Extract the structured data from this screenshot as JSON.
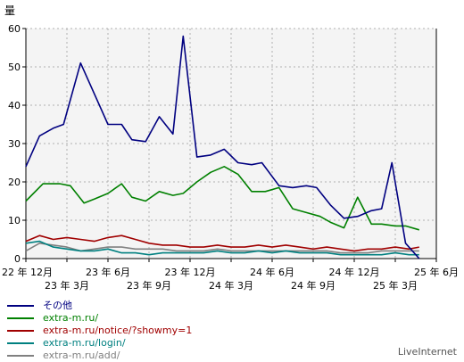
{
  "chart_data": {
    "type": "line",
    "ylabel": "量",
    "ylim": [
      0,
      60
    ],
    "yticks": [
      0,
      10,
      20,
      30,
      40,
      50,
      60
    ],
    "grid": true,
    "x_labels_row1": [
      {
        "text": "22 年 12月",
        "i": 0
      },
      {
        "text": "23 年 6月",
        "i": 24
      },
      {
        "text": "23 年 12月",
        "i": 48
      },
      {
        "text": "24 年 6月",
        "i": 72
      },
      {
        "text": "24 年 12月",
        "i": 96
      },
      {
        "text": "25 年 6月",
        "i": 120
      }
    ],
    "x_labels_row2": [
      {
        "text": "23 年 3月",
        "i": 12
      },
      {
        "text": "23 年 9月",
        "i": 36
      },
      {
        "text": "24 年 3月",
        "i": 60
      },
      {
        "text": "24 年 9月",
        "i": 84
      },
      {
        "text": "25 年 3月",
        "i": 108
      }
    ],
    "x_index_max": 120,
    "series": [
      {
        "name": "その他",
        "color": "#000080",
        "points": [
          [
            0,
            24
          ],
          [
            4,
            32
          ],
          [
            8,
            34
          ],
          [
            11,
            35
          ],
          [
            16,
            51
          ],
          [
            24,
            35
          ],
          [
            28,
            35
          ],
          [
            31,
            31
          ],
          [
            35,
            30.5
          ],
          [
            39,
            37
          ],
          [
            43,
            32.5
          ],
          [
            46,
            58
          ],
          [
            50,
            26.5
          ],
          [
            54,
            27
          ],
          [
            58,
            28.5
          ],
          [
            62,
            25
          ],
          [
            66,
            24.5
          ],
          [
            69,
            25
          ],
          [
            74,
            19
          ],
          [
            78,
            18.5
          ],
          [
            82,
            19
          ],
          [
            85,
            18.5
          ],
          [
            89,
            14
          ],
          [
            93,
            10.5
          ],
          [
            97,
            11
          ],
          [
            101,
            12.5
          ],
          [
            104,
            13
          ],
          [
            107,
            25
          ],
          [
            111,
            4
          ],
          [
            115,
            0
          ]
        ]
      },
      {
        "name": "extra-m.ru/",
        "color": "#008000",
        "points": [
          [
            0,
            15
          ],
          [
            5,
            19.5
          ],
          [
            10,
            19.5
          ],
          [
            13,
            19
          ],
          [
            17,
            14.5
          ],
          [
            20,
            15.5
          ],
          [
            24,
            17
          ],
          [
            28,
            19.5
          ],
          [
            31,
            16
          ],
          [
            35,
            15
          ],
          [
            39,
            17.5
          ],
          [
            43,
            16.5
          ],
          [
            46,
            17
          ],
          [
            50,
            20
          ],
          [
            54,
            22.5
          ],
          [
            58,
            24
          ],
          [
            62,
            22
          ],
          [
            66,
            17.5
          ],
          [
            70,
            17.5
          ],
          [
            74,
            18.5
          ],
          [
            78,
            13
          ],
          [
            82,
            12
          ],
          [
            86,
            11
          ],
          [
            89,
            9.5
          ],
          [
            93,
            8
          ],
          [
            97,
            16
          ],
          [
            101,
            9
          ],
          [
            104,
            9
          ],
          [
            108,
            8.5
          ],
          [
            111,
            8.5
          ],
          [
            115,
            7.5
          ]
        ]
      },
      {
        "name": "extra-m.ru/notice/?showmy=1",
        "color": "#a00000",
        "points": [
          [
            0,
            4.5
          ],
          [
            4,
            6
          ],
          [
            8,
            5
          ],
          [
            12,
            5.5
          ],
          [
            16,
            5
          ],
          [
            20,
            4.5
          ],
          [
            24,
            5.5
          ],
          [
            28,
            6
          ],
          [
            32,
            5
          ],
          [
            36,
            4
          ],
          [
            40,
            3.5
          ],
          [
            44,
            3.5
          ],
          [
            48,
            3
          ],
          [
            52,
            3
          ],
          [
            56,
            3.5
          ],
          [
            60,
            3
          ],
          [
            64,
            3
          ],
          [
            68,
            3.5
          ],
          [
            72,
            3
          ],
          [
            76,
            3.5
          ],
          [
            80,
            3
          ],
          [
            84,
            2.5
          ],
          [
            88,
            3
          ],
          [
            92,
            2.5
          ],
          [
            96,
            2
          ],
          [
            100,
            2.5
          ],
          [
            104,
            2.5
          ],
          [
            108,
            3
          ],
          [
            112,
            2.5
          ],
          [
            115,
            3
          ]
        ]
      },
      {
        "name": "extra-m.ru/login/",
        "color": "#008080",
        "points": [
          [
            0,
            4
          ],
          [
            4,
            4.5
          ],
          [
            8,
            3
          ],
          [
            12,
            2.5
          ],
          [
            16,
            2
          ],
          [
            20,
            2
          ],
          [
            24,
            2.5
          ],
          [
            28,
            1.5
          ],
          [
            32,
            1.5
          ],
          [
            36,
            1
          ],
          [
            40,
            1.5
          ],
          [
            44,
            1.5
          ],
          [
            48,
            1.5
          ],
          [
            52,
            1.5
          ],
          [
            56,
            2
          ],
          [
            60,
            1.5
          ],
          [
            64,
            1.5
          ],
          [
            68,
            2
          ],
          [
            72,
            1.5
          ],
          [
            76,
            2
          ],
          [
            80,
            1.5
          ],
          [
            84,
            1.5
          ],
          [
            88,
            1.5
          ],
          [
            92,
            1
          ],
          [
            96,
            1
          ],
          [
            100,
            1
          ],
          [
            104,
            1
          ],
          [
            108,
            1.5
          ],
          [
            112,
            1
          ],
          [
            115,
            1
          ]
        ]
      },
      {
        "name": "extra-m.ru/add/",
        "color": "#808080",
        "points": [
          [
            0,
            2
          ],
          [
            4,
            4
          ],
          [
            8,
            3.5
          ],
          [
            12,
            3
          ],
          [
            16,
            2
          ],
          [
            20,
            2.5
          ],
          [
            24,
            3
          ],
          [
            28,
            3
          ],
          [
            32,
            2.5
          ],
          [
            36,
            2.5
          ],
          [
            40,
            2.5
          ],
          [
            44,
            2
          ],
          [
            48,
            2
          ],
          [
            52,
            2
          ],
          [
            56,
            2.5
          ],
          [
            60,
            2
          ],
          [
            64,
            2
          ],
          [
            68,
            2
          ],
          [
            72,
            2
          ],
          [
            76,
            2
          ],
          [
            80,
            2
          ],
          [
            84,
            2
          ],
          [
            88,
            2
          ],
          [
            92,
            1.5
          ],
          [
            96,
            1.5
          ],
          [
            100,
            1.5
          ],
          [
            104,
            2
          ],
          [
            108,
            2
          ],
          [
            112,
            2
          ],
          [
            115,
            2
          ]
        ]
      }
    ],
    "credit": "LiveInternet"
  }
}
